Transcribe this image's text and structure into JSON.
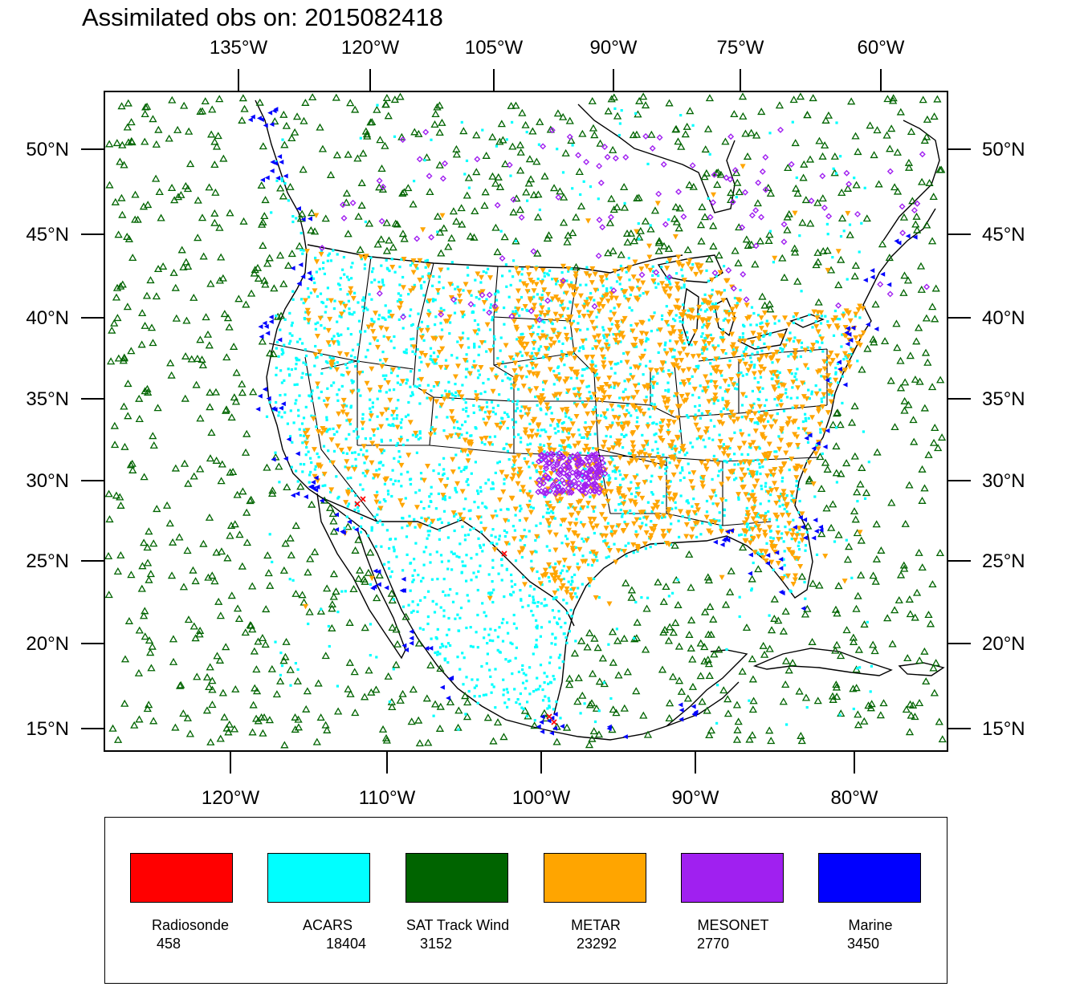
{
  "title": "Assimilated obs on: 2015082418",
  "map": {
    "top_lon_ticks": [
      "135°W",
      "120°W",
      "105°W",
      "90°W",
      "75°W",
      "60°W"
    ],
    "bottom_lon_ticks": [
      "120°W",
      "110°W",
      "100°W",
      "90°W",
      "80°W"
    ],
    "lat_ticks": [
      "50°N",
      "45°N",
      "40°N",
      "35°N",
      "30°N",
      "25°N",
      "20°N",
      "15°N"
    ],
    "extent": {
      "lon_min": -127.0,
      "lon_max": -73.8,
      "lat_min": 13.5,
      "lat_max": 53.5
    }
  },
  "legend": {
    "items": [
      {
        "name": "Radiosonde",
        "count": "458",
        "color": "#ff0000",
        "marker": "x"
      },
      {
        "name": "ACARS",
        "count": "18404",
        "color": "#00ffff",
        "marker": "square"
      },
      {
        "name": "SAT Track Wind",
        "count": "3152",
        "color": "#006400",
        "marker": "triangle-up"
      },
      {
        "name": "METAR",
        "count": "23292",
        "color": "#ffa500",
        "marker": "triangle-down"
      },
      {
        "name": "MESONET",
        "count": "2770",
        "color": "#a020f0",
        "marker": "diamond"
      },
      {
        "name": "Marine",
        "count": "3450",
        "color": "#0000ff",
        "marker": "left-triangle"
      }
    ]
  }
}
